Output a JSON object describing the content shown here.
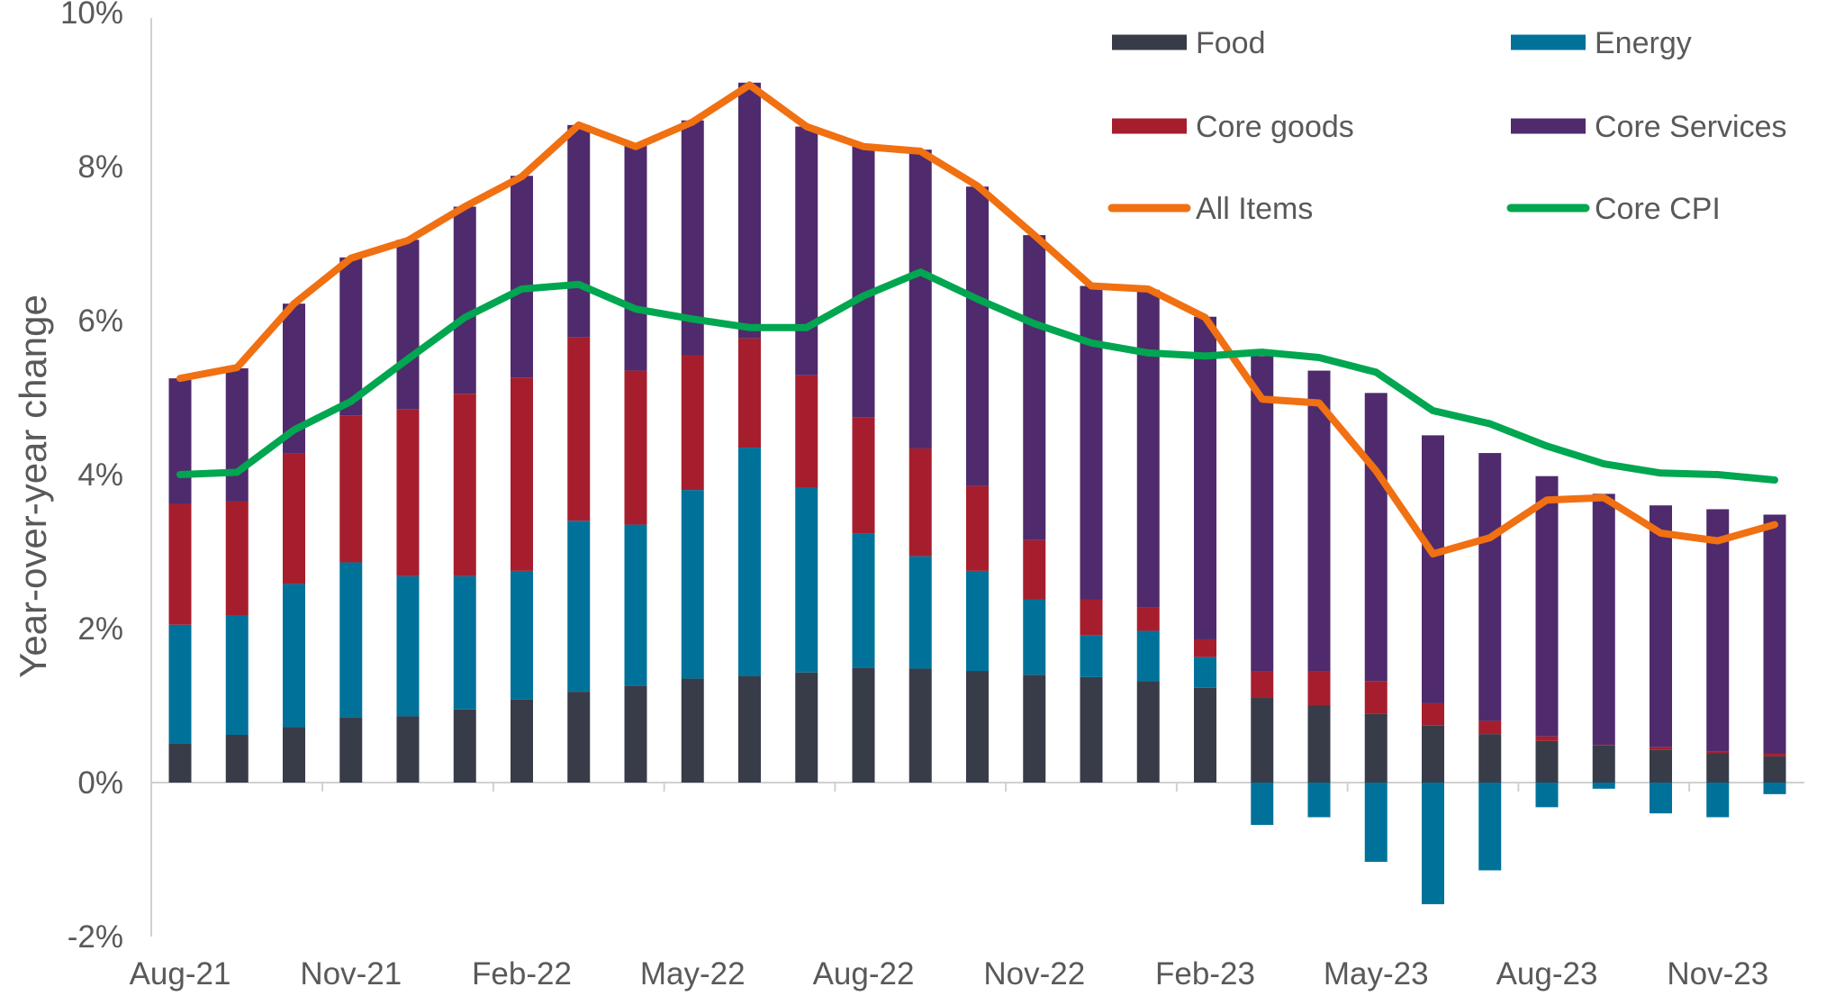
{
  "chart_data": {
    "type": "bar",
    "subtype": "stacked-bar-with-lines",
    "title": "",
    "xlabel": "",
    "ylabel": "Year-over-year change",
    "ylim": [
      -2,
      10
    ],
    "yticks": [
      -2,
      0,
      2,
      4,
      6,
      8,
      10
    ],
    "ytick_labels": [
      "-2%",
      "0%",
      "2%",
      "4%",
      "6%",
      "8%",
      "10%"
    ],
    "grid": false,
    "legend_position": "top-right",
    "categories": [
      "Aug-21",
      "Sep-21",
      "Oct-21",
      "Nov-21",
      "Dec-21",
      "Jan-22",
      "Feb-22",
      "Mar-22",
      "Apr-22",
      "May-22",
      "Jun-22",
      "Jul-22",
      "Aug-22",
      "Sep-22",
      "Oct-22",
      "Nov-22",
      "Dec-22",
      "Jan-23",
      "Feb-23",
      "Mar-23",
      "Apr-23",
      "May-23",
      "Jun-23",
      "Jul-23",
      "Aug-23",
      "Sep-23",
      "Oct-23",
      "Nov-23",
      "Dec-23"
    ],
    "xtick_labels": [
      "Aug-21",
      "Nov-21",
      "Feb-22",
      "May-22",
      "Aug-22",
      "Nov-22",
      "Feb-23",
      "May-23",
      "Aug-23",
      "Nov-23"
    ],
    "bar_series": [
      {
        "name": "Food",
        "color": "#383c48",
        "values": [
          0.51,
          0.62,
          0.72,
          0.85,
          0.86,
          0.95,
          1.08,
          1.18,
          1.26,
          1.35,
          1.38,
          1.43,
          1.49,
          1.48,
          1.45,
          1.4,
          1.37,
          1.32,
          1.23,
          1.11,
          1.0,
          0.89,
          0.74,
          0.63,
          0.54,
          0.48,
          0.43,
          0.38,
          0.34
        ]
      },
      {
        "name": "Energy",
        "color": "#00729a",
        "values": [
          1.54,
          1.55,
          1.86,
          2.01,
          1.82,
          1.73,
          1.67,
          2.22,
          2.09,
          2.45,
          2.97,
          2.4,
          1.74,
          1.46,
          1.3,
          0.98,
          0.54,
          0.65,
          0.4,
          -0.55,
          -0.45,
          -1.03,
          -1.58,
          -1.14,
          -0.32,
          -0.08,
          -0.4,
          -0.45,
          -0.15
        ]
      },
      {
        "name": "Core goods",
        "color": "#a61e2d",
        "values": [
          1.57,
          1.48,
          1.7,
          1.91,
          2.17,
          2.37,
          2.51,
          2.38,
          2.0,
          1.75,
          1.42,
          1.46,
          1.51,
          1.4,
          1.1,
          0.77,
          0.47,
          0.31,
          0.23,
          0.34,
          0.45,
          0.43,
          0.29,
          0.17,
          0.06,
          0.01,
          0.03,
          0.02,
          0.04
        ]
      },
      {
        "name": "Core Services",
        "color": "#4f2a6c",
        "values": [
          1.63,
          1.73,
          1.94,
          2.05,
          2.2,
          2.43,
          2.62,
          2.76,
          2.93,
          3.05,
          3.32,
          3.23,
          3.54,
          3.88,
          3.89,
          3.96,
          4.07,
          4.12,
          4.19,
          4.09,
          3.9,
          3.74,
          3.48,
          3.48,
          3.38,
          3.26,
          3.14,
          3.15,
          3.1
        ]
      }
    ],
    "line_series": [
      {
        "name": "All Items",
        "color": "#f07012",
        "values": [
          5.25,
          5.39,
          6.22,
          6.81,
          7.04,
          7.48,
          7.87,
          8.54,
          8.26,
          8.58,
          9.06,
          8.52,
          8.26,
          8.2,
          7.75,
          7.11,
          6.45,
          6.41,
          6.04,
          4.98,
          4.93,
          4.05,
          2.97,
          3.18,
          3.67,
          3.7,
          3.24,
          3.14,
          3.35
        ]
      },
      {
        "name": "Core CPI",
        "color": "#00a650",
        "values": [
          4.0,
          4.03,
          4.58,
          4.95,
          5.5,
          6.04,
          6.41,
          6.47,
          6.15,
          6.02,
          5.91,
          5.91,
          6.32,
          6.63,
          6.28,
          5.96,
          5.71,
          5.58,
          5.54,
          5.59,
          5.52,
          5.33,
          4.83,
          4.66,
          4.37,
          4.14,
          4.02,
          4.0,
          3.93
        ]
      }
    ],
    "legend": [
      {
        "label": "Food",
        "kind": "bar",
        "color": "#383c48"
      },
      {
        "label": "Energy",
        "kind": "bar",
        "color": "#00729a"
      },
      {
        "label": "Core goods",
        "kind": "bar",
        "color": "#a61e2d"
      },
      {
        "label": "Core Services",
        "kind": "bar",
        "color": "#4f2a6c"
      },
      {
        "label": "All Items",
        "kind": "line",
        "color": "#f07012"
      },
      {
        "label": "Core CPI",
        "kind": "line",
        "color": "#00a650"
      }
    ]
  }
}
